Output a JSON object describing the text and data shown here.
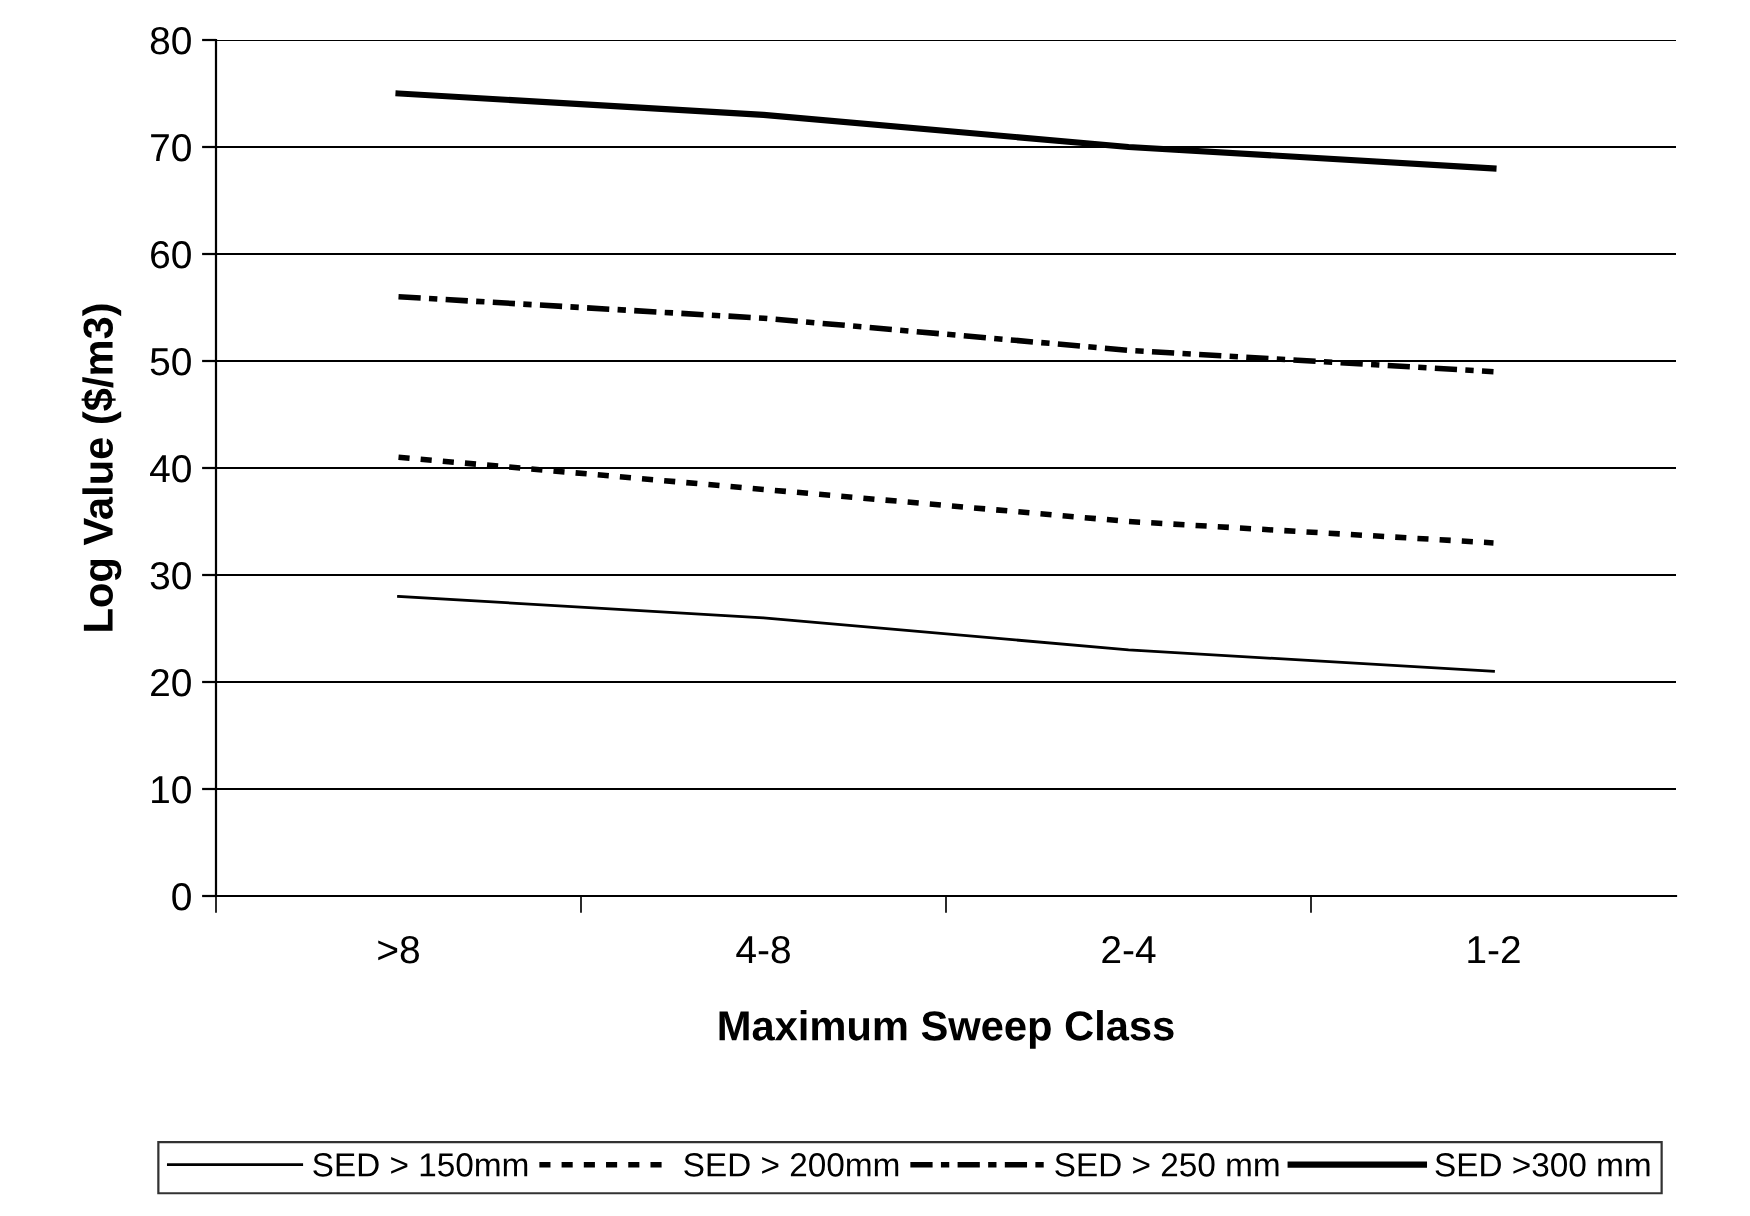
{
  "chart_data": {
    "type": "line",
    "xlabel": "Maximum Sweep Class",
    "ylabel": "Log Value ($/m3)",
    "categories": [
      ">8",
      "4-8",
      "2-4",
      "1-2"
    ],
    "series": [
      {
        "name": "SED > 150mm",
        "color": "#000000",
        "line_style": "solid",
        "values": [
          28,
          26,
          23,
          21
        ]
      },
      {
        "name": "SED > 200mm",
        "color": "#000000",
        "line_style": "dotted",
        "values": [
          41,
          38,
          35,
          33
        ]
      },
      {
        "name": "SED > 250 mm",
        "color": "#000000",
        "line_style": "dashed",
        "values": [
          56,
          54,
          51,
          49
        ]
      },
      {
        "name": "SED >300 mm",
        "color": "#000000",
        "line_style": "solid",
        "values": [
          75,
          73,
          70,
          68
        ]
      }
    ],
    "ylim": [
      0,
      80
    ],
    "yticks": [
      0,
      10,
      20,
      30,
      40,
      50,
      60,
      70,
      80
    ],
    "grid": "y",
    "legend": "bottom",
    "marker": "none"
  }
}
